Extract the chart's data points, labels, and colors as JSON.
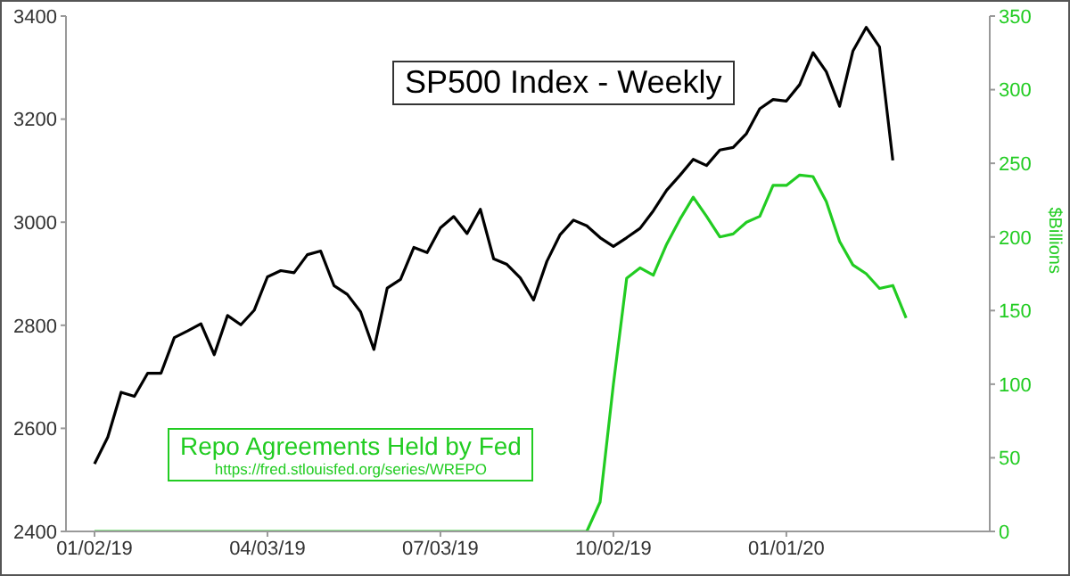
{
  "chart_data": {
    "type": "line",
    "title": "SP500 Index - Weekly",
    "y2label": "$Billions",
    "x": [
      "2019-01-02",
      "2019-01-09",
      "2019-01-16",
      "2019-01-23",
      "2019-01-30",
      "2019-02-06",
      "2019-02-13",
      "2019-02-20",
      "2019-02-27",
      "2019-03-06",
      "2019-03-13",
      "2019-03-20",
      "2019-03-27",
      "2019-04-03",
      "2019-04-10",
      "2019-04-17",
      "2019-04-24",
      "2019-05-01",
      "2019-05-08",
      "2019-05-15",
      "2019-05-22",
      "2019-05-29",
      "2019-06-05",
      "2019-06-12",
      "2019-06-19",
      "2019-06-26",
      "2019-07-03",
      "2019-07-10",
      "2019-07-17",
      "2019-07-24",
      "2019-07-31",
      "2019-08-07",
      "2019-08-14",
      "2019-08-21",
      "2019-08-28",
      "2019-09-04",
      "2019-09-11",
      "2019-09-18",
      "2019-09-25",
      "2019-10-02",
      "2019-10-09",
      "2019-10-16",
      "2019-10-23",
      "2019-10-30",
      "2019-11-06",
      "2019-11-13",
      "2019-11-20",
      "2019-11-27",
      "2019-12-04",
      "2019-12-11",
      "2019-12-18",
      "2019-12-25",
      "2020-01-01",
      "2020-01-08",
      "2020-01-15",
      "2020-01-22",
      "2020-01-29",
      "2020-02-05",
      "2020-02-12",
      "2020-02-19",
      "2020-02-26",
      "2020-03-04"
    ],
    "series": [
      {
        "color": "#000000",
        "values": [
          2531,
          2583,
          2670,
          2662,
          2707,
          2707,
          2776,
          2789,
          2803,
          2743,
          2819,
          2801,
          2829,
          2894,
          2906,
          2902,
          2937,
          2944,
          2877,
          2860,
          2826,
          2753,
          2872,
          2889,
          2951,
          2941,
          2989,
          3011,
          2978,
          3025,
          2929,
          2918,
          2892,
          2849,
          2924,
          2976,
          3004,
          2993,
          2970,
          2953,
          2970,
          2988,
          3022,
          3062,
          3091,
          3122,
          3110,
          3140,
          3145,
          3172,
          3220,
          3238,
          3235,
          3267,
          3329,
          3292,
          3225,
          3332,
          3378,
          3340,
          3120,
          null
        ]
      },
      {
        "name": "Repo Agreements Held by Fed",
        "color": "#22cc22",
        "axis": "y2",
        "values": [
          0,
          0,
          0,
          0,
          0,
          0,
          0,
          0,
          0,
          0,
          0,
          0,
          0,
          0,
          0,
          0,
          0,
          0,
          0,
          0,
          0,
          0,
          0,
          0,
          0,
          0,
          0,
          0,
          0,
          0,
          0,
          0,
          0,
          0,
          0,
          0,
          0,
          0,
          20,
          100,
          172,
          179,
          174,
          195,
          212,
          227,
          214,
          200,
          202,
          210,
          214,
          235,
          235,
          242,
          241,
          224,
          197,
          181,
          175,
          165,
          167,
          145
        ]
      }
    ],
    "xlim": [
      "2018-12-18",
      "2020-04-17"
    ],
    "xticks": [
      {
        "value": "2019-01-02",
        "label": "01/02/19"
      },
      {
        "value": "2019-04-03",
        "label": "04/03/19"
      },
      {
        "value": "2019-07-03",
        "label": "07/03/19"
      },
      {
        "value": "2019-10-02",
        "label": "10/02/19"
      },
      {
        "value": "2020-01-01",
        "label": "01/01/20"
      }
    ],
    "ylim": [
      2400,
      3400
    ],
    "yticks": [
      2400,
      2600,
      2800,
      3000,
      3200,
      3400
    ],
    "y2lim": [
      0,
      350
    ],
    "y2ticks": [
      0,
      50,
      100,
      150,
      200,
      250,
      300,
      350
    ],
    "annotations": [
      "https://fred.stlouisfed.org/series/WREPO"
    ]
  }
}
